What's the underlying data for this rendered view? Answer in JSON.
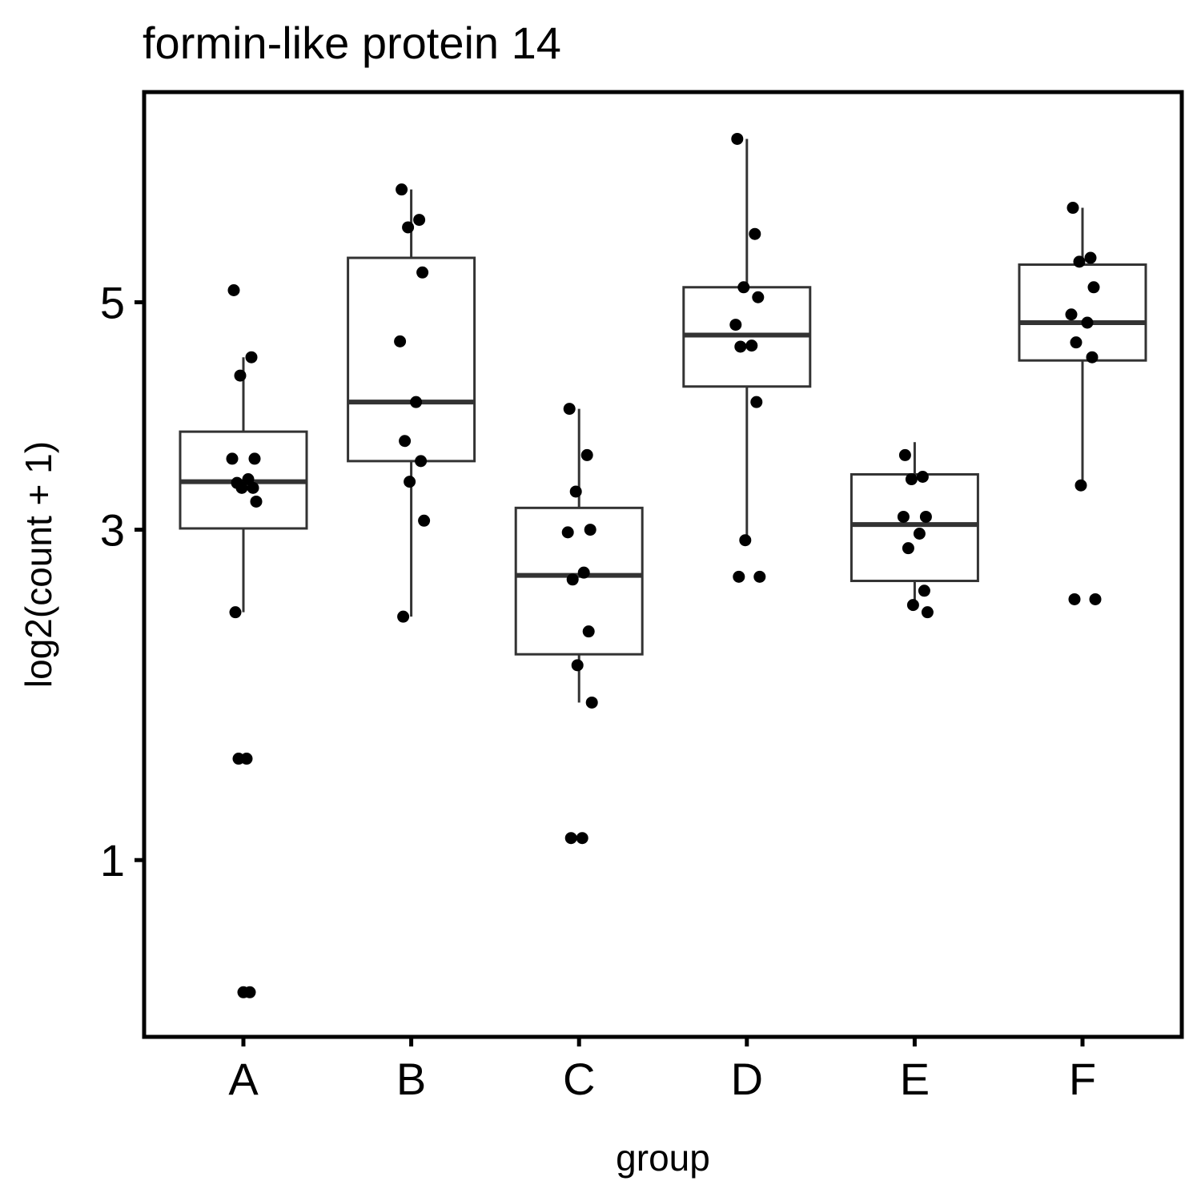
{
  "chart_data": {
    "type": "boxplot",
    "title": "formin-like protein 14",
    "xlabel": "group",
    "ylabel": "log2(count + 1)",
    "y_scale": "sqrt",
    "ylim": [
      0.37,
      7.3
    ],
    "y_ticks": [
      1,
      3,
      5
    ],
    "y_tick_labels": [
      "1",
      "3",
      "5"
    ],
    "categories": [
      "A",
      "B",
      "C",
      "D",
      "E",
      "F"
    ],
    "grid": false,
    "colors": {
      "box_stroke": "#333333",
      "points": "#000000",
      "axis": "#000000"
    },
    "boxes": [
      {
        "group": "A",
        "lower_whisker": 2.4,
        "q1": 3.01,
        "median": 3.38,
        "q3": 3.8,
        "upper_whisker": 4.47
      },
      {
        "group": "B",
        "lower_whisker": 2.37,
        "q1": 3.55,
        "median": 4.06,
        "q3": 5.45,
        "upper_whisker": 6.18
      },
      {
        "group": "C",
        "lower_whisker": 1.82,
        "q1": 2.12,
        "median": 2.66,
        "q3": 3.17,
        "upper_whisker": 4.0
      },
      {
        "group": "D",
        "lower_whisker": 2.92,
        "q1": 4.2,
        "median": 4.68,
        "q3": 5.15,
        "upper_whisker": 6.75
      },
      {
        "group": "E",
        "lower_whisker": 2.45,
        "q1": 2.62,
        "median": 3.04,
        "q3": 3.44,
        "upper_whisker": 3.71
      },
      {
        "group": "F",
        "lower_whisker": 3.35,
        "q1": 4.44,
        "median": 4.8,
        "q3": 5.38,
        "upper_whisker": 5.98
      }
    ],
    "points": [
      {
        "group": "A",
        "values": [
          5.12,
          4.47,
          4.3,
          3.57,
          3.57,
          3.4,
          3.37,
          3.33,
          3.33,
          3.22,
          2.4,
          1.5,
          1.5,
          0.5,
          0.5
        ]
      },
      {
        "group": "B",
        "values": [
          6.18,
          5.85,
          5.77,
          5.3,
          4.62,
          4.06,
          3.72,
          3.55,
          3.38,
          3.07,
          2.37
        ]
      },
      {
        "group": "C",
        "values": [
          4.0,
          3.6,
          3.3,
          3.0,
          2.98,
          2.68,
          2.63,
          2.27,
          2.05,
          1.82,
          1.1,
          1.1
        ]
      },
      {
        "group": "D",
        "values": [
          6.75,
          5.7,
          5.15,
          5.05,
          4.78,
          4.58,
          4.57,
          4.06,
          2.92,
          2.65,
          2.65
        ]
      },
      {
        "group": "E",
        "values": [
          3.6,
          3.42,
          3.4,
          3.1,
          3.1,
          2.97,
          2.86,
          2.55,
          2.45,
          2.4
        ]
      },
      {
        "group": "F",
        "values": [
          5.98,
          5.45,
          5.41,
          5.15,
          4.88,
          4.8,
          4.61,
          4.47,
          3.35,
          2.49,
          2.49
        ]
      }
    ]
  }
}
